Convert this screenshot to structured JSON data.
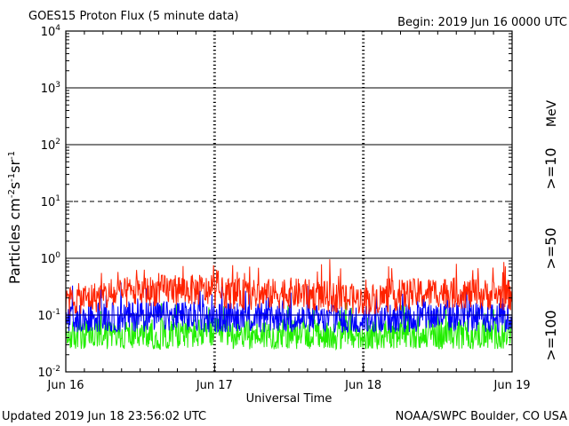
{
  "header": {
    "title": "GOES15 Proton Flux (5 minute data)",
    "begin": "Begin: 2019 Jun 16 0000 UTC"
  },
  "footer": {
    "updated": "Updated 2019 Jun 18 23:56:02 UTC",
    "source": "NOAA/SWPC Boulder, CO USA"
  },
  "colors": {
    "ge10": "#ff2200",
    "ge50": "#0000ff",
    "ge100": "#22ee00",
    "axis": "#000000"
  },
  "chart_data": {
    "type": "line",
    "title": "GOES15 Proton Flux (5 minute data)",
    "xlabel": "Universal Time",
    "ylabel": "Particles cm⁻²s⁻¹sr⁻¹",
    "y_scale": "log",
    "ylim": [
      0.01,
      10000
    ],
    "y_ticks": [
      {
        "base": "10",
        "exp": "4"
      },
      {
        "base": "10",
        "exp": "3"
      },
      {
        "base": "10",
        "exp": "2"
      },
      {
        "base": "10",
        "exp": "1"
      },
      {
        "base": "10",
        "exp": "0"
      },
      {
        "base": "10",
        "exp": "-1"
      },
      {
        "base": "10",
        "exp": "-2"
      }
    ],
    "x_ticks": [
      "Jun 16",
      "Jun 17",
      "Jun 18",
      "Jun 19"
    ],
    "x_range_days": [
      0,
      3
    ],
    "reference_lines": {
      "solid": [
        1,
        100,
        1000
      ],
      "dashed": [
        10
      ],
      "blue": 0.1
    },
    "energy_unit": "MeV",
    "grid": false,
    "series": [
      {
        "name": ">=10",
        "color": "#ff2200",
        "base": 0.2,
        "profile_x": [
          0,
          0.25,
          0.5,
          0.75,
          1.0,
          1.25,
          1.5,
          1.75,
          2.0,
          2.25,
          2.5,
          2.75,
          3.0
        ],
        "profile_y": [
          0.17,
          0.2,
          0.24,
          0.27,
          0.24,
          0.21,
          0.23,
          0.2,
          0.17,
          0.21,
          0.24,
          0.22,
          0.21
        ]
      },
      {
        "name": ">=50",
        "color": "#0000ff",
        "base": 0.08,
        "profile_x": [
          0,
          0.5,
          1.0,
          1.5,
          2.0,
          2.5,
          3.0
        ],
        "profile_y": [
          0.075,
          0.09,
          0.085,
          0.08,
          0.072,
          0.09,
          0.08
        ]
      },
      {
        "name": ">=100",
        "color": "#22ee00",
        "base": 0.04,
        "profile_x": [
          0,
          1.0,
          2.0,
          3.0
        ],
        "profile_y": [
          0.04,
          0.045,
          0.04,
          0.043
        ]
      }
    ]
  }
}
